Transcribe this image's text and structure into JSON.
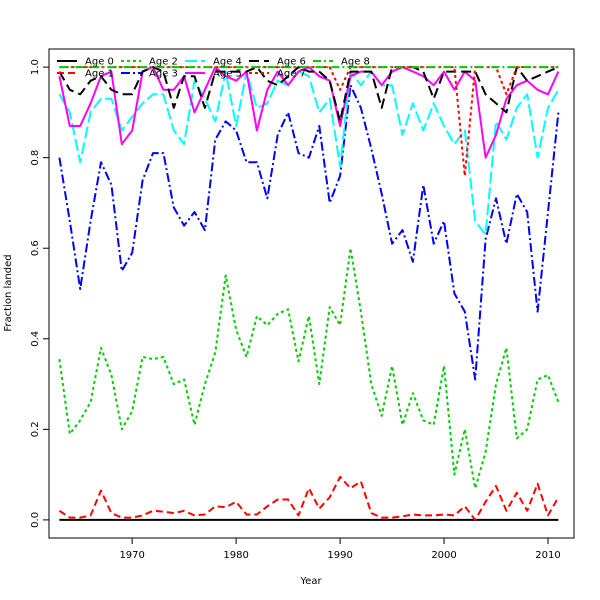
{
  "chart_data": {
    "type": "line",
    "title": "",
    "xlabel": "Year",
    "ylabel": "Fraction landed",
    "xlim": [
      1962,
      2012.5
    ],
    "ylim": [
      -0.04,
      1.04
    ],
    "xticks": [
      1970,
      1980,
      1990,
      2000,
      2010
    ],
    "yticks": [
      0.0,
      0.2,
      0.4,
      0.6,
      0.8,
      1.0
    ],
    "grid": false,
    "legend_placement": "top-left",
    "x": [
      1963,
      1964,
      1965,
      1966,
      1967,
      1968,
      1969,
      1970,
      1971,
      1972,
      1973,
      1974,
      1975,
      1976,
      1977,
      1978,
      1979,
      1980,
      1981,
      1982,
      1983,
      1984,
      1985,
      1986,
      1987,
      1988,
      1989,
      1990,
      1991,
      1992,
      1993,
      1994,
      1995,
      1996,
      1997,
      1998,
      1999,
      2000,
      2001,
      2002,
      2003,
      2004,
      2005,
      2006,
      2007,
      2008,
      2009,
      2010,
      2011
    ],
    "series": [
      {
        "name": "Age 0",
        "color": "#000000",
        "dash": "",
        "values": [
          0,
          0,
          0,
          0,
          0,
          0,
          0,
          0,
          0,
          0,
          0,
          0,
          0,
          0,
          0,
          0,
          0,
          0,
          0,
          0,
          0,
          0,
          0,
          0,
          0,
          0,
          0,
          0,
          0,
          0,
          0,
          0,
          0,
          0,
          0,
          0,
          0,
          0,
          0,
          0,
          0,
          0,
          0,
          0,
          0,
          0,
          0,
          0,
          0
        ]
      },
      {
        "name": "Age 1",
        "color": "#ff0000",
        "dash": "7,4",
        "values": [
          0.02,
          0.005,
          0.005,
          0.01,
          0.065,
          0.015,
          0.005,
          0.005,
          0.01,
          0.02,
          0.018,
          0.015,
          0.02,
          0.01,
          0.012,
          0.03,
          0.028,
          0.04,
          0.012,
          0.012,
          0.03,
          0.045,
          0.045,
          0.01,
          0.07,
          0.025,
          0.05,
          0.095,
          0.07,
          0.085,
          0.015,
          0.005,
          0.005,
          0.008,
          0.012,
          0.01,
          0.01,
          0.012,
          0.01,
          0.03,
          0.0,
          0.04,
          0.075,
          0.02,
          0.06,
          0.02,
          0.08,
          0.01,
          0.05
        ]
      },
      {
        "name": "Age 2",
        "color": "#00cd00",
        "dash": "3,3",
        "values": [
          0.355,
          0.19,
          0.22,
          0.26,
          0.38,
          0.32,
          0.2,
          0.24,
          0.36,
          0.355,
          0.36,
          0.3,
          0.31,
          0.21,
          0.3,
          0.37,
          0.54,
          0.42,
          0.36,
          0.45,
          0.43,
          0.455,
          0.465,
          0.35,
          0.45,
          0.3,
          0.47,
          0.43,
          0.6,
          0.46,
          0.3,
          0.23,
          0.34,
          0.21,
          0.28,
          0.22,
          0.21,
          0.34,
          0.1,
          0.2,
          0.07,
          0.15,
          0.3,
          0.38,
          0.18,
          0.2,
          0.31,
          0.32,
          0.26
        ]
      },
      {
        "name": "Age 3",
        "color": "#0000ff",
        "dash": "9,3,2,3",
        "values": [
          0.8,
          0.66,
          0.51,
          0.66,
          0.79,
          0.74,
          0.55,
          0.59,
          0.75,
          0.81,
          0.81,
          0.69,
          0.65,
          0.68,
          0.64,
          0.84,
          0.88,
          0.86,
          0.79,
          0.79,
          0.71,
          0.85,
          0.9,
          0.81,
          0.8,
          0.87,
          0.7,
          0.76,
          0.96,
          0.91,
          0.82,
          0.72,
          0.61,
          0.64,
          0.57,
          0.74,
          0.61,
          0.66,
          0.5,
          0.46,
          0.31,
          0.62,
          0.71,
          0.61,
          0.72,
          0.68,
          0.46,
          0.68,
          0.9
        ]
      },
      {
        "name": "Age 4",
        "color": "#00ffff",
        "dash": "12,4",
        "values": [
          0.94,
          0.9,
          0.79,
          0.9,
          0.93,
          0.93,
          0.86,
          0.89,
          0.92,
          0.94,
          0.94,
          0.86,
          0.83,
          0.97,
          0.93,
          0.88,
          0.99,
          0.87,
          0.99,
          0.91,
          0.92,
          0.97,
          0.96,
          0.99,
          0.98,
          0.9,
          0.93,
          0.78,
          0.99,
          0.96,
          0.99,
          0.96,
          0.96,
          0.85,
          0.92,
          0.86,
          0.92,
          0.87,
          0.83,
          0.86,
          0.66,
          0.63,
          0.88,
          0.84,
          0.91,
          0.94,
          0.8,
          0.91,
          0.95
        ]
      },
      {
        "name": "Age 5",
        "color": "#ff00ff",
        "dash": "",
        "values": [
          0.98,
          0.87,
          0.87,
          0.92,
          0.98,
          0.99,
          0.83,
          0.86,
          0.99,
          1.0,
          0.95,
          0.95,
          0.98,
          0.9,
          0.95,
          1.0,
          0.98,
          0.97,
          0.99,
          0.86,
          0.95,
          0.99,
          0.96,
          0.99,
          1.0,
          0.98,
          0.97,
          0.87,
          0.98,
          0.99,
          0.99,
          0.96,
          0.99,
          1.0,
          0.99,
          0.98,
          0.96,
          0.99,
          0.95,
          0.99,
          0.97,
          0.8,
          0.85,
          0.93,
          0.96,
          0.97,
          0.95,
          0.94,
          0.99
        ]
      },
      {
        "name": "Age 6",
        "color": "#000000",
        "dash": "10,5",
        "values": [
          0.99,
          0.95,
          0.94,
          0.97,
          0.98,
          0.95,
          0.94,
          0.94,
          0.99,
          1.0,
          0.99,
          0.91,
          0.98,
          0.98,
          0.91,
          0.99,
          0.99,
          0.99,
          0.99,
          1.0,
          0.97,
          0.96,
          0.98,
          1.0,
          0.99,
          0.99,
          0.97,
          0.88,
          0.99,
          0.99,
          0.99,
          0.91,
          1.0,
          1.0,
          1.0,
          0.99,
          0.93,
          0.99,
          0.99,
          0.99,
          0.99,
          0.94,
          0.92,
          0.9,
          1.0,
          0.97,
          0.98,
          0.99,
          1.0
        ]
      },
      {
        "name": "Age 7",
        "color": "#ff0000",
        "dash": "3,3",
        "values": [
          1.0,
          1.0,
          1.0,
          1.0,
          1.0,
          1.0,
          1.0,
          1.0,
          1.0,
          1.0,
          1.0,
          1.0,
          1.0,
          1.0,
          1.0,
          1.0,
          1.0,
          1.0,
          1.0,
          1.0,
          1.0,
          1.0,
          1.0,
          1.0,
          1.0,
          1.0,
          1.0,
          0.95,
          1.0,
          1.0,
          1.0,
          1.0,
          1.0,
          1.0,
          1.0,
          1.0,
          1.0,
          1.0,
          1.0,
          0.76,
          1.0,
          1.0,
          1.0,
          0.94,
          1.0,
          1.0,
          1.0,
          1.0,
          1.0
        ]
      },
      {
        "name": "Age 8",
        "color": "#00cd00",
        "dash": "8,3,2,3",
        "values": [
          1.0,
          1.0,
          1.0,
          1.0,
          1.0,
          1.0,
          1.0,
          1.0,
          1.0,
          1.0,
          1.0,
          1.0,
          1.0,
          1.0,
          1.0,
          1.0,
          1.0,
          1.0,
          1.0,
          1.0,
          1.0,
          1.0,
          1.0,
          1.0,
          1.0,
          1.0,
          1.0,
          1.0,
          1.0,
          1.0,
          1.0,
          1.0,
          1.0,
          1.0,
          1.0,
          1.0,
          1.0,
          1.0,
          1.0,
          1.0,
          1.0,
          1.0,
          1.0,
          1.0,
          1.0,
          1.0,
          1.0,
          1.0,
          1.0
        ]
      }
    ]
  }
}
